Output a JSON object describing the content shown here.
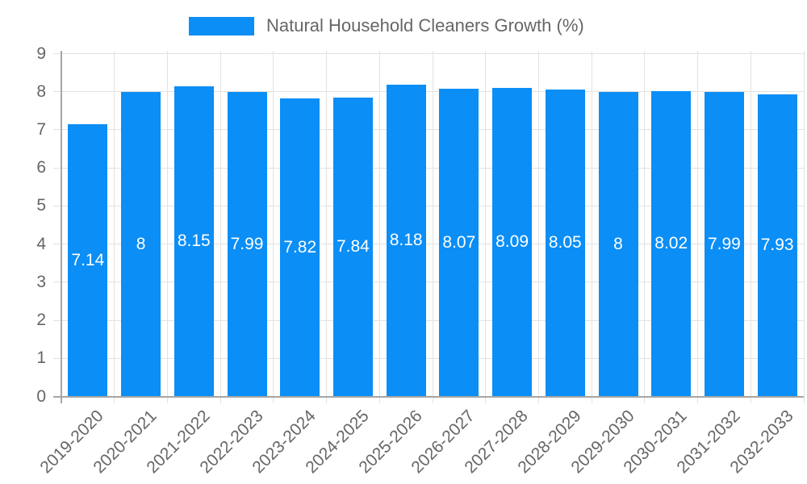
{
  "chart_data": {
    "type": "bar",
    "title": "Natural Household Cleaners Growth (%)",
    "categories": [
      "2019-2020",
      "2020-2021",
      "2021-2022",
      "2022-2023",
      "2023-2024",
      "2024-2025",
      "2025-2026",
      "2026-2027",
      "2027-2028",
      "2028-2029",
      "2029-2030",
      "2030-2031",
      "2031-2032",
      "2032-2033"
    ],
    "values": [
      7.14,
      8,
      8.15,
      7.99,
      7.82,
      7.84,
      8.18,
      8.07,
      8.09,
      8.05,
      8,
      8.02,
      7.99,
      7.93
    ],
    "value_labels": [
      "7.14",
      "8",
      "8.15",
      "7.99",
      "7.82",
      "7.84",
      "8.18",
      "8.07",
      "8.09",
      "8.05",
      "8",
      "8.02",
      "7.99",
      "7.93"
    ],
    "xlabel": "",
    "ylabel": "",
    "ylim": [
      0,
      9
    ],
    "yticks": [
      0,
      1,
      2,
      3,
      4,
      5,
      6,
      7,
      8,
      9
    ],
    "grid": true,
    "legend_position": "top-center",
    "x_label_rotation_deg": -45,
    "colors": {
      "bar": "#0b8ef6",
      "grid": "#e2e2e2",
      "axis": "#a6a6a6",
      "text": "#666666",
      "bar_label": "#ffffff",
      "background": "#ffffff"
    }
  }
}
